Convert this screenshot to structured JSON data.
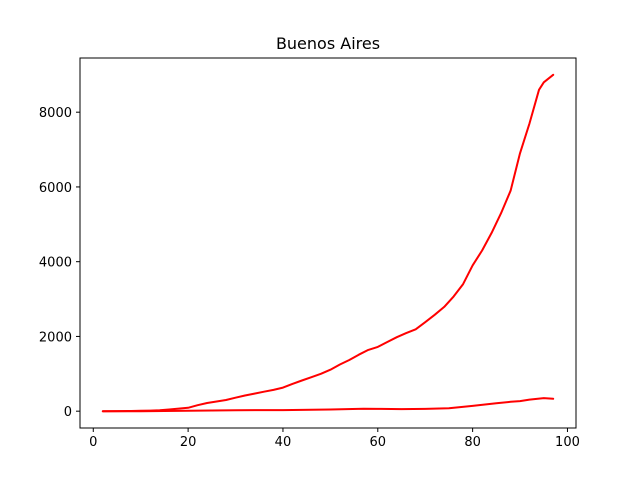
{
  "chart_data": {
    "type": "line",
    "title": "Buenos Aires",
    "xlabel": "",
    "ylabel": "",
    "xlim": [
      -2.8,
      101.8
    ],
    "ylim": [
      -450,
      9450
    ],
    "xticks": [
      0,
      20,
      40,
      60,
      80,
      100
    ],
    "yticks": [
      0,
      2000,
      4000,
      6000,
      8000
    ],
    "grid": false,
    "series": [
      {
        "color": "#ff0000",
        "x": [
          2,
          5,
          8,
          10,
          12,
          14,
          16,
          18,
          20,
          22,
          24,
          26,
          28,
          30,
          32,
          34,
          36,
          38,
          40,
          42,
          44,
          46,
          48,
          50,
          52,
          54,
          56,
          58,
          60,
          62,
          64,
          66,
          68,
          70,
          72,
          74,
          76,
          78,
          80,
          82,
          84,
          86,
          88,
          90,
          92,
          94,
          95,
          97
        ],
        "values": [
          0,
          2,
          5,
          10,
          15,
          25,
          45,
          70,
          90,
          160,
          220,
          260,
          300,
          360,
          420,
          470,
          520,
          570,
          630,
          730,
          820,
          910,
          1000,
          1110,
          1250,
          1370,
          1510,
          1640,
          1720,
          1850,
          1980,
          2090,
          2190,
          2380,
          2580,
          2790,
          3070,
          3400,
          3900,
          4300,
          4770,
          5300,
          5900,
          6900,
          7700,
          8600,
          8800,
          9000
        ]
      },
      {
        "color": "#ff0000",
        "x": [
          2,
          10,
          20,
          30,
          40,
          50,
          57,
          60,
          65,
          70,
          75,
          80,
          85,
          88,
          90,
          92,
          95,
          97
        ],
        "values": [
          0,
          0,
          10,
          25,
          30,
          45,
          65,
          60,
          55,
          60,
          80,
          140,
          210,
          250,
          270,
          310,
          350,
          330
        ]
      }
    ]
  }
}
